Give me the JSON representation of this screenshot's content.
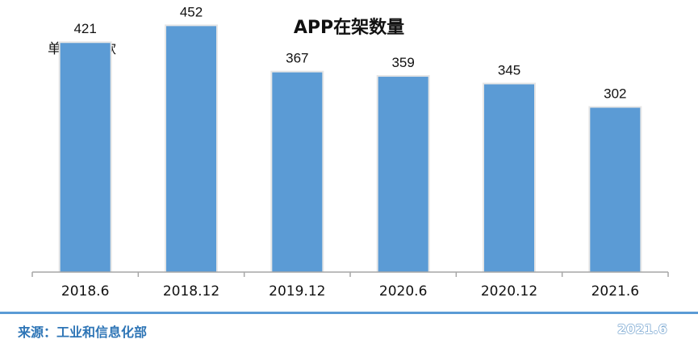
{
  "chart_data": {
    "type": "bar",
    "title": "APP在架数量",
    "unit_label": "单位：万款",
    "categories": [
      "2018.6",
      "2018.12",
      "2019.12",
      "2020.6",
      "2020.12",
      "2021.6"
    ],
    "values": [
      421,
      452,
      367,
      359,
      345,
      302
    ],
    "ylim": [
      0,
      500
    ],
    "grid": false,
    "bar_color": "#5b9bd5"
  },
  "footer": {
    "source": "来源：工业和信息化部",
    "date": "2021.6"
  }
}
